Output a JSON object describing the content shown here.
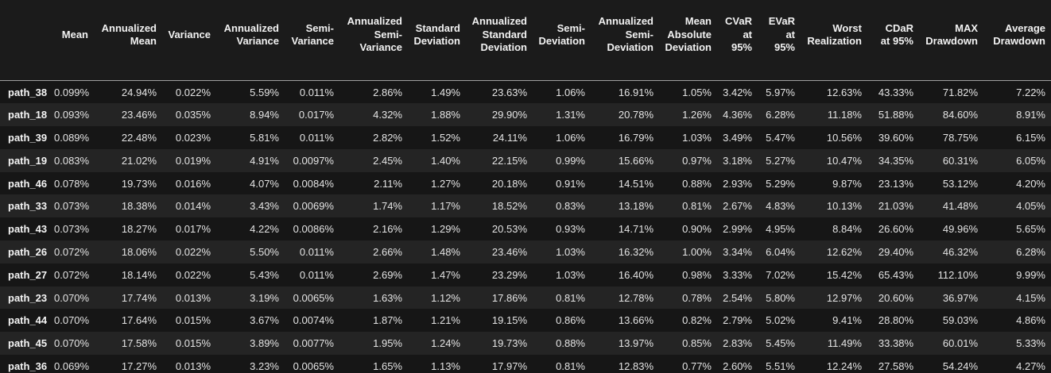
{
  "chart_data": {
    "type": "table",
    "title": "",
    "columns": [
      "Mean",
      "Annualized\nMean",
      "Variance",
      "Annualized\nVariance",
      "Semi-\nVariance",
      "Annualized\nSemi-\nVariance",
      "Standard\nDeviation",
      "Annualized\nStandard\nDeviation",
      "Semi-\nDeviation",
      "Annualized\nSemi-\nDeviation",
      "Mean\nAbsolute\nDeviation",
      "CVaR\nat\n95%",
      "EVaR\nat\n95%",
      "Worst\nRealization",
      "CDaR\nat 95%",
      "MAX\nDrawdown",
      "Average\nDrawdown"
    ],
    "rows": [
      {
        "label": "path_38",
        "values": [
          "0.099%",
          "24.94%",
          "0.022%",
          "5.59%",
          "0.011%",
          "2.86%",
          "1.49%",
          "23.63%",
          "1.06%",
          "16.91%",
          "1.05%",
          "3.42%",
          "5.97%",
          "12.63%",
          "43.33%",
          "71.82%",
          "7.22%"
        ]
      },
      {
        "label": "path_18",
        "values": [
          "0.093%",
          "23.46%",
          "0.035%",
          "8.94%",
          "0.017%",
          "4.32%",
          "1.88%",
          "29.90%",
          "1.31%",
          "20.78%",
          "1.26%",
          "4.36%",
          "6.28%",
          "11.18%",
          "51.88%",
          "84.60%",
          "8.91%"
        ]
      },
      {
        "label": "path_39",
        "values": [
          "0.089%",
          "22.48%",
          "0.023%",
          "5.81%",
          "0.011%",
          "2.82%",
          "1.52%",
          "24.11%",
          "1.06%",
          "16.79%",
          "1.03%",
          "3.49%",
          "5.47%",
          "10.56%",
          "39.60%",
          "78.75%",
          "6.15%"
        ]
      },
      {
        "label": "path_19",
        "values": [
          "0.083%",
          "21.02%",
          "0.019%",
          "4.91%",
          "0.0097%",
          "2.45%",
          "1.40%",
          "22.15%",
          "0.99%",
          "15.66%",
          "0.97%",
          "3.18%",
          "5.27%",
          "10.47%",
          "34.35%",
          "60.31%",
          "6.05%"
        ]
      },
      {
        "label": "path_46",
        "values": [
          "0.078%",
          "19.73%",
          "0.016%",
          "4.07%",
          "0.0084%",
          "2.11%",
          "1.27%",
          "20.18%",
          "0.91%",
          "14.51%",
          "0.88%",
          "2.93%",
          "5.29%",
          "9.87%",
          "23.13%",
          "53.12%",
          "4.20%"
        ]
      },
      {
        "label": "path_33",
        "values": [
          "0.073%",
          "18.38%",
          "0.014%",
          "3.43%",
          "0.0069%",
          "1.74%",
          "1.17%",
          "18.52%",
          "0.83%",
          "13.18%",
          "0.81%",
          "2.67%",
          "4.83%",
          "10.13%",
          "21.03%",
          "41.48%",
          "4.05%"
        ]
      },
      {
        "label": "path_43",
        "values": [
          "0.073%",
          "18.27%",
          "0.017%",
          "4.22%",
          "0.0086%",
          "2.16%",
          "1.29%",
          "20.53%",
          "0.93%",
          "14.71%",
          "0.90%",
          "2.99%",
          "4.95%",
          "8.84%",
          "26.60%",
          "49.96%",
          "5.65%"
        ]
      },
      {
        "label": "path_26",
        "values": [
          "0.072%",
          "18.06%",
          "0.022%",
          "5.50%",
          "0.011%",
          "2.66%",
          "1.48%",
          "23.46%",
          "1.03%",
          "16.32%",
          "1.00%",
          "3.34%",
          "6.04%",
          "12.62%",
          "29.40%",
          "46.32%",
          "6.28%"
        ]
      },
      {
        "label": "path_27",
        "values": [
          "0.072%",
          "18.14%",
          "0.022%",
          "5.43%",
          "0.011%",
          "2.69%",
          "1.47%",
          "23.29%",
          "1.03%",
          "16.40%",
          "0.98%",
          "3.33%",
          "7.02%",
          "15.42%",
          "65.43%",
          "112.10%",
          "9.99%"
        ]
      },
      {
        "label": "path_23",
        "values": [
          "0.070%",
          "17.74%",
          "0.013%",
          "3.19%",
          "0.0065%",
          "1.63%",
          "1.12%",
          "17.86%",
          "0.81%",
          "12.78%",
          "0.78%",
          "2.54%",
          "5.80%",
          "12.97%",
          "20.60%",
          "36.97%",
          "4.15%"
        ]
      },
      {
        "label": "path_44",
        "values": [
          "0.070%",
          "17.64%",
          "0.015%",
          "3.67%",
          "0.0074%",
          "1.87%",
          "1.21%",
          "19.15%",
          "0.86%",
          "13.66%",
          "0.82%",
          "2.79%",
          "5.02%",
          "9.41%",
          "28.80%",
          "59.03%",
          "4.86%"
        ]
      },
      {
        "label": "path_45",
        "values": [
          "0.070%",
          "17.58%",
          "0.015%",
          "3.89%",
          "0.0077%",
          "1.95%",
          "1.24%",
          "19.73%",
          "0.88%",
          "13.97%",
          "0.85%",
          "2.83%",
          "5.45%",
          "11.49%",
          "33.38%",
          "60.01%",
          "5.33%"
        ]
      },
      {
        "label": "path_36",
        "values": [
          "0.069%",
          "17.27%",
          "0.013%",
          "3.23%",
          "0.0065%",
          "1.65%",
          "1.13%",
          "17.97%",
          "0.81%",
          "12.83%",
          "0.77%",
          "2.60%",
          "5.51%",
          "12.24%",
          "27.58%",
          "54.24%",
          "4.27%"
        ]
      }
    ],
    "layout": {
      "theme": "dark",
      "striped": true,
      "grid": false,
      "colors": {
        "background": "#1b1b1b",
        "row_odd": "#161616",
        "row_even": "#242424",
        "header_text": "#f2f2f2",
        "cell_text": "#e4e4e4",
        "header_rule": "#9e9e9e",
        "bottom_rule": "#8f8f8f"
      }
    }
  }
}
